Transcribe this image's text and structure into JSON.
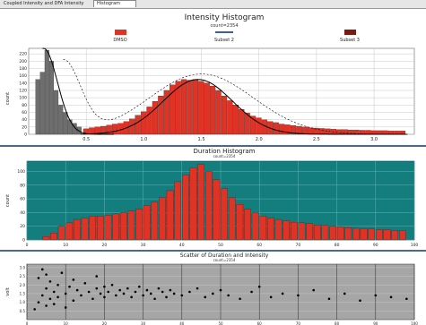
{
  "window": {
    "tabs": [
      {
        "label": "Coupled Intensity and DFA Intensity",
        "active": false
      },
      {
        "label": "Histogram",
        "active": true
      }
    ]
  },
  "colors": {
    "red": "#e03326",
    "dark_red": "#7a1a12",
    "gray": "#6e6e6e",
    "teal": "#147d7d",
    "plot_gray": "#a6a6a6"
  },
  "chart_data": [
    {
      "type": "bar",
      "title": "Intensity Histogram",
      "subtitle": "count=2354",
      "xlabel": "volt",
      "ylabel": "count",
      "xlim": [
        0.0,
        3.35
      ],
      "ylim": [
        0,
        235
      ],
      "xticks": [
        "0.5",
        "1.0",
        "1.5",
        "2.0",
        "2.5",
        "3.0"
      ],
      "yticks": [
        "0",
        "20",
        "40",
        "60",
        "80",
        "100",
        "120",
        "140",
        "160",
        "180",
        "200",
        "220"
      ],
      "grid": true,
      "legend_position": "top",
      "series": [
        {
          "name": "DMSO",
          "color": "#e03326",
          "x": [
            0.5,
            0.55,
            0.6,
            0.65,
            0.7,
            0.75,
            0.8,
            0.85,
            0.9,
            0.95,
            1.0,
            1.05,
            1.1,
            1.15,
            1.2,
            1.25,
            1.3,
            1.35,
            1.4,
            1.45,
            1.5,
            1.55,
            1.6,
            1.65,
            1.7,
            1.75,
            1.8,
            1.85,
            1.9,
            1.95,
            2.0,
            2.05,
            2.1,
            2.15,
            2.2,
            2.25,
            2.3,
            2.35,
            2.4,
            2.45,
            2.5,
            2.55,
            2.6,
            2.65,
            2.7,
            2.75,
            2.8,
            2.85,
            2.9,
            2.95,
            3.0,
            3.05,
            3.1,
            3.15,
            3.2,
            3.25
          ],
          "values": [
            15,
            18,
            20,
            22,
            25,
            28,
            30,
            35,
            42,
            52,
            62,
            75,
            90,
            105,
            120,
            135,
            145,
            150,
            148,
            150,
            145,
            140,
            132,
            120,
            105,
            92,
            80,
            68,
            58,
            50,
            45,
            40,
            35,
            32,
            28,
            26,
            24,
            22,
            20,
            18,
            17,
            16,
            15,
            14,
            13,
            13,
            12,
            12,
            11,
            11,
            10,
            10,
            10,
            9,
            9,
            9
          ]
        },
        {
          "name": "Subset 2",
          "color": "#6e6e6e",
          "x": [
            0.08,
            0.12,
            0.16,
            0.2,
            0.24,
            0.28,
            0.32,
            0.36,
            0.4,
            0.44
          ],
          "values": [
            150,
            170,
            230,
            200,
            120,
            80,
            60,
            40,
            30,
            20
          ]
        },
        {
          "name": "Subset 3",
          "color": "#7a1a12",
          "x": [],
          "values": []
        }
      ]
    },
    {
      "type": "bar",
      "title": "Duration Histogram",
      "subtitle": "count=2354",
      "xlabel": "time",
      "ylabel": "count",
      "xlim": [
        0,
        100
      ],
      "ylim": [
        0,
        115
      ],
      "xticks": [
        "0",
        "10",
        "20",
        "30",
        "40",
        "50",
        "60",
        "70",
        "80",
        "90",
        "100"
      ],
      "yticks": [
        "0",
        "20",
        "40",
        "60",
        "80",
        "100"
      ],
      "grid": true,
      "series": [
        {
          "name": "",
          "color": "#e03326",
          "x": [
            5,
            7,
            9,
            11,
            13,
            15,
            17,
            19,
            21,
            23,
            25,
            27,
            29,
            31,
            33,
            35,
            37,
            39,
            41,
            43,
            45,
            47,
            49,
            51,
            53,
            55,
            57,
            59,
            61,
            63,
            65,
            67,
            69,
            71,
            73,
            75,
            77,
            79,
            81,
            83,
            85,
            87,
            89,
            91,
            93,
            95,
            97
          ],
          "values": [
            5,
            10,
            20,
            25,
            30,
            32,
            35,
            35,
            36,
            38,
            40,
            42,
            45,
            50,
            55,
            62,
            72,
            85,
            95,
            105,
            110,
            100,
            88,
            75,
            62,
            52,
            45,
            40,
            35,
            32,
            30,
            28,
            26,
            25,
            24,
            22,
            22,
            20,
            19,
            18,
            17,
            16,
            16,
            15,
            15,
            14,
            14
          ]
        }
      ]
    },
    {
      "type": "scatter",
      "title": "Scatter of Duration and Intensity",
      "subtitle": "count=2354",
      "xlabel": "time",
      "ylabel": "volt",
      "xlim": [
        0,
        100
      ],
      "ylim": [
        0,
        3.2
      ],
      "xticks": [
        "0",
        "10",
        "20",
        "30",
        "40",
        "50",
        "60",
        "70",
        "80",
        "90",
        "100"
      ],
      "yticks": [
        "0.5",
        "1.0",
        "1.5",
        "2.0",
        "2.5",
        "3.0"
      ],
      "grid": true,
      "series": [
        {
          "name": "",
          "color": "#000000",
          "x": [
            2,
            3,
            3,
            4,
            4,
            5,
            5,
            5,
            6,
            6,
            7,
            7,
            8,
            8,
            9,
            10,
            10,
            11,
            12,
            12,
            13,
            14,
            15,
            16,
            17,
            18,
            18,
            19,
            20,
            20,
            21,
            22,
            23,
            24,
            25,
            26,
            27,
            28,
            29,
            30,
            31,
            32,
            33,
            34,
            35,
            36,
            37,
            38,
            40,
            42,
            44,
            46,
            48,
            50,
            52,
            55,
            58,
            60,
            63,
            66,
            70,
            74,
            78,
            82,
            86,
            90,
            94,
            98
          ],
          "y": [
            0.6,
            1.0,
            2.4,
            1.4,
            2.9,
            0.8,
            1.8,
            2.6,
            1.2,
            2.2,
            1.6,
            0.9,
            2.0,
            1.3,
            2.7,
            1.5,
            0.7,
            1.9,
            1.1,
            2.3,
            1.7,
            1.4,
            2.1,
            1.6,
            1.2,
            1.8,
            2.5,
            1.5,
            1.3,
            1.9,
            1.6,
            2.0,
            1.4,
            1.7,
            1.5,
            1.8,
            1.3,
            1.6,
            1.9,
            1.4,
            1.7,
            1.5,
            1.2,
            1.8,
            1.6,
            1.3,
            1.7,
            1.5,
            1.4,
            1.6,
            1.8,
            1.3,
            1.5,
            1.7,
            1.4,
            1.2,
            1.6,
            1.9,
            1.3,
            1.5,
            1.4,
            1.7,
            1.2,
            1.5,
            1.1,
            1.4,
            1.3,
            1.2
          ]
        }
      ]
    }
  ]
}
